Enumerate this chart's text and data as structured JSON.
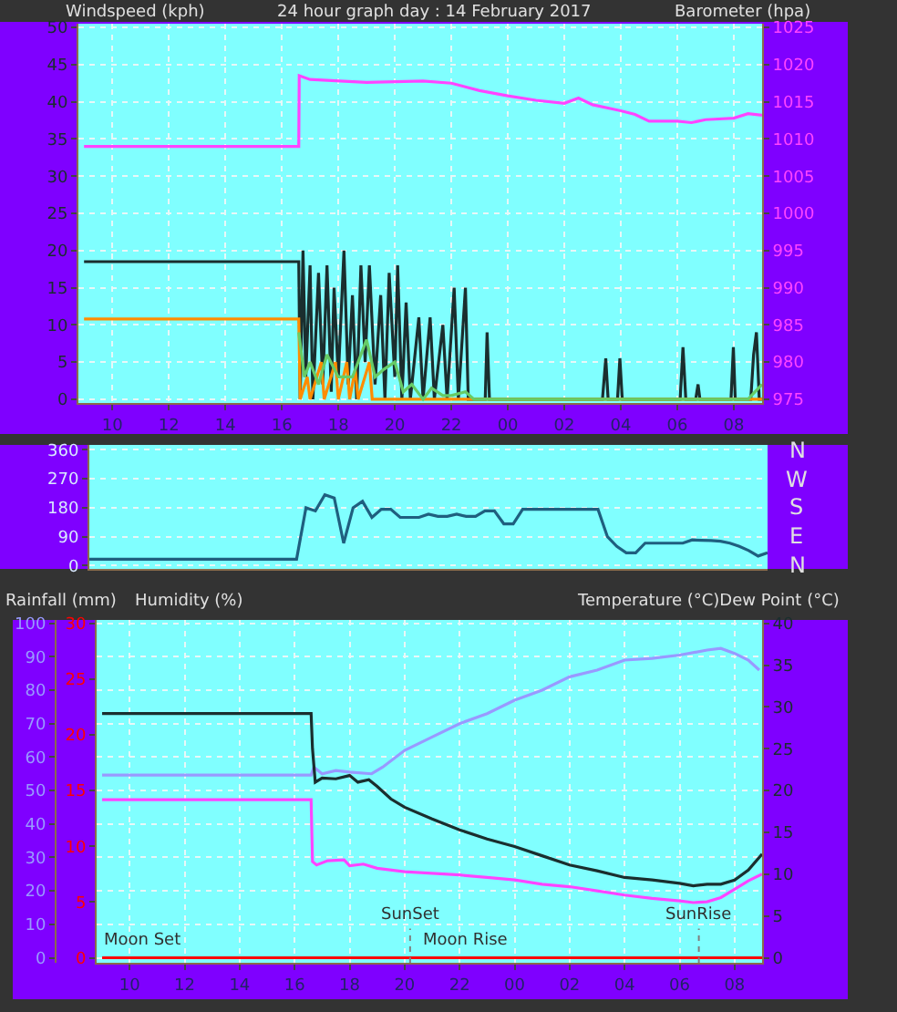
{
  "chart_data": [
    {
      "type": "line",
      "title": "24 hour graph day : 14 February 2017",
      "ylabel": "Windspeed (kph)",
      "y2label": "Barometer (hpa)",
      "grid": true,
      "marker": "none",
      "line_style": "solid",
      "xlim": [
        "2017-02-14T08:48",
        "2017-02-15T09:00"
      ],
      "xticks": [
        {
          "value": "2017-02-14T10:00",
          "label": "10"
        },
        {
          "value": "2017-02-14T12:00",
          "label": "12"
        },
        {
          "value": "2017-02-14T14:00",
          "label": "14"
        },
        {
          "value": "2017-02-14T16:00",
          "label": "16"
        },
        {
          "value": "2017-02-14T18:00",
          "label": "18"
        },
        {
          "value": "2017-02-14T20:00",
          "label": "20"
        },
        {
          "value": "2017-02-14T22:00",
          "label": "22"
        },
        {
          "value": "2017-02-15T00:00",
          "label": "00"
        },
        {
          "value": "2017-02-15T02:00",
          "label": "02"
        },
        {
          "value": "2017-02-15T04:00",
          "label": "04"
        },
        {
          "value": "2017-02-15T06:00",
          "label": "06"
        },
        {
          "value": "2017-02-15T08:00",
          "label": "08"
        }
      ],
      "ylim": [
        -0.5,
        50.5
      ],
      "yticks": [
        0,
        5,
        10,
        15,
        20,
        25,
        30,
        35,
        40,
        45,
        50
      ],
      "y2lim": [
        974.5,
        1025.5
      ],
      "y2ticks": [
        975,
        980,
        985,
        990,
        995,
        1000,
        1005,
        1010,
        1015,
        1020,
        1025
      ],
      "series": [
        {
          "color": "#1a2e2e",
          "axis": "y",
          "x": [
            "2017-02-14T09:00",
            "2017-02-14T16:36",
            "2017-02-14T16:39",
            "2017-02-14T16:45",
            "2017-02-14T16:51",
            "2017-02-14T17:00",
            "2017-02-14T17:06",
            "2017-02-14T17:18",
            "2017-02-14T17:27",
            "2017-02-14T17:36",
            "2017-02-14T17:45",
            "2017-02-14T17:51",
            "2017-02-14T18:00",
            "2017-02-14T18:12",
            "2017-02-14T18:21",
            "2017-02-14T18:30",
            "2017-02-14T18:39",
            "2017-02-14T18:48",
            "2017-02-14T18:57",
            "2017-02-14T19:06",
            "2017-02-14T19:18",
            "2017-02-14T19:30",
            "2017-02-14T19:39",
            "2017-02-14T19:48",
            "2017-02-14T20:00",
            "2017-02-14T20:06",
            "2017-02-14T20:15",
            "2017-02-14T20:24",
            "2017-02-14T20:33",
            "2017-02-14T20:51",
            "2017-02-14T21:00",
            "2017-02-14T21:15",
            "2017-02-14T21:24",
            "2017-02-14T21:42",
            "2017-02-14T21:51",
            "2017-02-14T22:06",
            "2017-02-14T22:15",
            "2017-02-14T22:30",
            "2017-02-14T22:36",
            "2017-02-14T23:12",
            "2017-02-14T23:16",
            "2017-02-14T23:21",
            "2017-02-15T03:21",
            "2017-02-15T03:28",
            "2017-02-15T03:33",
            "2017-02-15T03:53",
            "2017-02-15T03:58",
            "2017-02-15T04:03",
            "2017-02-15T06:06",
            "2017-02-15T06:12",
            "2017-02-15T06:18",
            "2017-02-15T06:39",
            "2017-02-15T06:44",
            "2017-02-15T06:48",
            "2017-02-15T07:54",
            "2017-02-15T07:59",
            "2017-02-15T08:03",
            "2017-02-15T08:36",
            "2017-02-15T08:42",
            "2017-02-15T08:48",
            "2017-02-15T08:54",
            "2017-02-15T09:00"
          ],
          "values": [
            18.5,
            18.5,
            0,
            20,
            3,
            18,
            0,
            17,
            2,
            18,
            1,
            15,
            3,
            20,
            2,
            14,
            0,
            18,
            5,
            18,
            2,
            14,
            0,
            17,
            3,
            18,
            0,
            13,
            0,
            11,
            0,
            11,
            0,
            10,
            0,
            15,
            0,
            15,
            0,
            0,
            9,
            0,
            0,
            5.5,
            0,
            0,
            5.5,
            0,
            0,
            7,
            0,
            0,
            2,
            0,
            0,
            7,
            0,
            0,
            6,
            9,
            0,
            0
          ]
        },
        {
          "color": "#ff8c00",
          "axis": "y",
          "x": [
            "2017-02-14T09:00",
            "2017-02-14T16:36",
            "2017-02-14T16:39",
            "2017-02-14T16:54",
            "2017-02-14T17:00",
            "2017-02-14T17:24",
            "2017-02-14T17:30",
            "2017-02-14T17:54",
            "2017-02-14T18:00",
            "2017-02-14T18:18",
            "2017-02-14T18:24",
            "2017-02-14T18:36",
            "2017-02-14T18:42",
            "2017-02-14T19:06",
            "2017-02-14T19:12",
            "2017-02-15T09:00"
          ],
          "values": [
            10.8,
            10.8,
            0,
            3,
            0,
            5,
            0,
            5,
            0,
            5,
            0,
            4,
            0,
            5,
            0,
            0
          ]
        },
        {
          "color": "#66cc66",
          "axis": "y",
          "x": [
            "2017-02-14T16:36",
            "2017-02-14T16:48",
            "2017-02-14T17:00",
            "2017-02-14T17:18",
            "2017-02-14T17:36",
            "2017-02-14T18:00",
            "2017-02-14T18:30",
            "2017-02-14T19:00",
            "2017-02-14T19:18",
            "2017-02-14T19:36",
            "2017-02-14T20:00",
            "2017-02-14T20:18",
            "2017-02-14T20:36",
            "2017-02-14T21:00",
            "2017-02-14T21:18",
            "2017-02-14T21:42",
            "2017-02-14T22:00",
            "2017-02-14T22:30",
            "2017-02-14T22:48",
            "2017-02-15T08:30",
            "2017-02-15T09:00"
          ],
          "values": [
            9,
            3,
            5,
            2,
            6,
            3,
            3,
            8,
            3,
            4,
            5,
            1,
            2,
            0,
            1.5,
            0.5,
            0.5,
            1,
            0,
            0,
            2
          ]
        },
        {
          "color": "#ff44ff",
          "axis": "y2",
          "x": [
            "2017-02-14T09:00",
            "2017-02-14T16:36",
            "2017-02-14T16:37",
            "2017-02-14T17:00",
            "2017-02-14T19:00",
            "2017-02-14T21:00",
            "2017-02-14T22:00",
            "2017-02-14T23:00",
            "2017-02-15T00:00",
            "2017-02-15T01:00",
            "2017-02-15T02:00",
            "2017-02-15T02:30",
            "2017-02-15T03:00",
            "2017-02-15T04:00",
            "2017-02-15T04:30",
            "2017-02-15T05:00",
            "2017-02-15T06:00",
            "2017-02-15T06:30",
            "2017-02-15T07:00",
            "2017-02-15T08:00",
            "2017-02-15T08:30",
            "2017-02-15T09:00"
          ],
          "values": [
            1009,
            1009,
            1018.5,
            1018,
            1017.6,
            1017.8,
            1017.5,
            1016.5,
            1015.8,
            1015.2,
            1014.8,
            1015.5,
            1014.6,
            1013.8,
            1013.3,
            1012.4,
            1012.4,
            1012.2,
            1012.6,
            1012.8,
            1013.4,
            1013.2
          ]
        }
      ]
    },
    {
      "type": "line",
      "grid": "y",
      "marker": "none",
      "line_style": "solid",
      "tick_labels": "y",
      "categories": [
        null,
        null,
        null,
        null,
        null,
        null,
        null,
        null,
        null,
        null,
        null,
        null,
        null,
        null,
        null,
        null,
        null,
        null,
        null,
        null,
        null,
        null,
        null,
        null,
        null,
        null,
        null,
        null,
        null,
        null,
        null,
        null,
        null,
        null,
        null,
        null,
        null,
        null,
        null,
        null,
        null,
        null,
        null,
        null,
        null,
        null,
        null,
        null,
        null,
        null,
        null,
        null,
        null,
        null,
        null,
        null,
        null,
        null,
        null,
        null,
        null,
        null,
        null,
        null,
        null,
        null,
        null,
        null,
        null,
        null,
        null,
        null,
        null
      ],
      "ylim": [
        -10,
        375
      ],
      "yticks": [
        0,
        90,
        180,
        270,
        360
      ],
      "annotations": [
        "N",
        "W",
        "S",
        "E",
        "N"
      ],
      "series": [
        {
          "color": "#1f5f7f",
          "axis": "y",
          "values": [
            20,
            20,
            20,
            20,
            20,
            20,
            20,
            20,
            20,
            20,
            20,
            20,
            20,
            20,
            20,
            20,
            20,
            20,
            20,
            20,
            20,
            20,
            20,
            180,
            170,
            220,
            210,
            70,
            180,
            200,
            150,
            175,
            175,
            150,
            150,
            150,
            160,
            153,
            153,
            160,
            153,
            153,
            170,
            170,
            130,
            130,
            175,
            175,
            175,
            175,
            175,
            175,
            175,
            175,
            175,
            90,
            60,
            40,
            40,
            70,
            70,
            70,
            70,
            70,
            80,
            79,
            78,
            76,
            70,
            60,
            47,
            30,
            40
          ]
        }
      ]
    },
    {
      "type": "line",
      "y3label": "Temperature (°C)Dew Point (°C)",
      "grid": true,
      "marker": "none",
      "line_style": "solid",
      "xlim": [
        "2017-02-14T08:48",
        "2017-02-15T09:00"
      ],
      "xticks": [
        {
          "value": "2017-02-14T10:00",
          "label": "10"
        },
        {
          "value": "2017-02-14T12:00",
          "label": "12"
        },
        {
          "value": "2017-02-14T14:00",
          "label": "14"
        },
        {
          "value": "2017-02-14T16:00",
          "label": "16"
        },
        {
          "value": "2017-02-14T18:00",
          "label": "18"
        },
        {
          "value": "2017-02-14T20:00",
          "label": "20"
        },
        {
          "value": "2017-02-14T22:00",
          "label": "22"
        },
        {
          "value": "2017-02-15T00:00",
          "label": "00"
        },
        {
          "value": "2017-02-15T02:00",
          "label": "02"
        },
        {
          "value": "2017-02-15T04:00",
          "label": "04"
        },
        {
          "value": "2017-02-15T06:00",
          "label": "06"
        },
        {
          "value": "2017-02-15T08:00",
          "label": "08"
        }
      ],
      "ylim": [
        -1.5,
        101
      ],
      "yticks": [
        0,
        10,
        20,
        30,
        40,
        50,
        60,
        70,
        80,
        90,
        100
      ],
      "y2lim": [
        -0.45,
        30.3
      ],
      "y2ticks": [
        0,
        5,
        10,
        15,
        20,
        25,
        30
      ],
      "y3lim": [
        -0.6,
        40.4
      ],
      "y3ticks": [
        0,
        5,
        10,
        15,
        20,
        25,
        30,
        35,
        40
      ],
      "series": [
        {
          "color": "#9999ff",
          "axis": "y",
          "x": [
            "2017-02-14T09:00",
            "2017-02-14T16:36",
            "2017-02-14T16:42",
            "2017-02-14T17:00",
            "2017-02-14T17:30",
            "2017-02-14T18:00",
            "2017-02-14T18:48",
            "2017-02-14T19:12",
            "2017-02-14T20:00",
            "2017-02-14T21:00",
            "2017-02-14T22:00",
            "2017-02-14T23:00",
            "2017-02-15T00:00",
            "2017-02-15T01:00",
            "2017-02-15T02:00",
            "2017-02-15T03:00",
            "2017-02-15T04:00",
            "2017-02-15T05:00",
            "2017-02-15T06:00",
            "2017-02-15T07:00",
            "2017-02-15T07:30",
            "2017-02-15T08:00",
            "2017-02-15T08:30",
            "2017-02-15T08:54"
          ],
          "values": [
            54.6,
            54.6,
            57,
            55,
            56,
            55.5,
            55,
            57,
            62,
            66,
            70,
            73,
            77,
            80,
            84,
            86,
            89,
            89.5,
            90.5,
            92,
            92.5,
            91,
            89,
            86
          ]
        },
        {
          "color": "#ff0000",
          "axis": "y2",
          "x": [
            "2017-02-14T09:00",
            "2017-02-15T09:00"
          ],
          "values": [
            0,
            0
          ]
        },
        {
          "color": "#1a2e2e",
          "axis": "y3",
          "x": [
            "2017-02-14T09:00",
            "2017-02-14T16:36",
            "2017-02-14T16:39",
            "2017-02-14T16:45",
            "2017-02-14T17:00",
            "2017-02-14T17:30",
            "2017-02-14T18:00",
            "2017-02-14T18:18",
            "2017-02-14T18:42",
            "2017-02-14T19:00",
            "2017-02-14T19:30",
            "2017-02-14T20:00",
            "2017-02-14T21:00",
            "2017-02-14T22:00",
            "2017-02-14T23:00",
            "2017-02-15T00:00",
            "2017-02-15T01:00",
            "2017-02-15T02:00",
            "2017-02-15T03:00",
            "2017-02-15T04:00",
            "2017-02-15T05:00",
            "2017-02-15T06:00",
            "2017-02-15T06:30",
            "2017-02-15T07:00",
            "2017-02-15T07:30",
            "2017-02-15T08:00",
            "2017-02-15T08:30",
            "2017-02-15T09:00"
          ],
          "values": [
            29.2,
            29.2,
            25,
            21,
            21.5,
            21.4,
            21.8,
            21,
            21.3,
            20.5,
            19,
            18,
            16.6,
            15.3,
            14.2,
            13.3,
            12.2,
            11.1,
            10.4,
            9.6,
            9.3,
            8.9,
            8.6,
            8.8,
            8.8,
            9.3,
            10.5,
            12.4
          ]
        },
        {
          "color": "#ff44ff",
          "axis": "y3",
          "x": [
            "2017-02-14T09:00",
            "2017-02-14T16:36",
            "2017-02-14T16:39",
            "2017-02-14T16:48",
            "2017-02-14T17:12",
            "2017-02-14T17:48",
            "2017-02-14T18:00",
            "2017-02-14T18:30",
            "2017-02-14T19:00",
            "2017-02-14T20:00",
            "2017-02-14T21:00",
            "2017-02-14T22:00",
            "2017-02-14T23:00",
            "2017-02-15T00:00",
            "2017-02-15T01:00",
            "2017-02-15T02:00",
            "2017-02-15T03:00",
            "2017-02-15T04:00",
            "2017-02-15T05:00",
            "2017-02-15T06:00",
            "2017-02-15T06:30",
            "2017-02-15T07:00",
            "2017-02-15T07:30",
            "2017-02-15T08:00",
            "2017-02-15T08:30",
            "2017-02-15T09:00"
          ],
          "values": [
            18.9,
            18.9,
            11.5,
            11.1,
            11.6,
            11.7,
            11.0,
            11.2,
            10.7,
            10.3,
            10.1,
            9.9,
            9.6,
            9.3,
            8.8,
            8.5,
            8.0,
            7.5,
            7.1,
            6.8,
            6.6,
            6.7,
            7.2,
            8.2,
            9.2,
            10.0
          ]
        }
      ],
      "ref_lines": [
        {
          "axis": "x",
          "value": "2017-02-14T20:12",
          "label": "SunSet",
          "color": "#808080",
          "line_style": "dotted"
        },
        {
          "axis": "x",
          "value": "2017-02-15T06:42",
          "label": "SunRise",
          "color": "#808080",
          "line_style": "dotted"
        }
      ],
      "annotations": [
        "Rainfall (mm)",
        "Humidity (%)",
        {
          "text": "Moon Set",
          "x": "2017-02-14T10:30",
          "y": 1.5
        },
        {
          "text": "Moon Rise",
          "x": "2017-02-14T22:12",
          "y": 1.5
        }
      ]
    }
  ]
}
